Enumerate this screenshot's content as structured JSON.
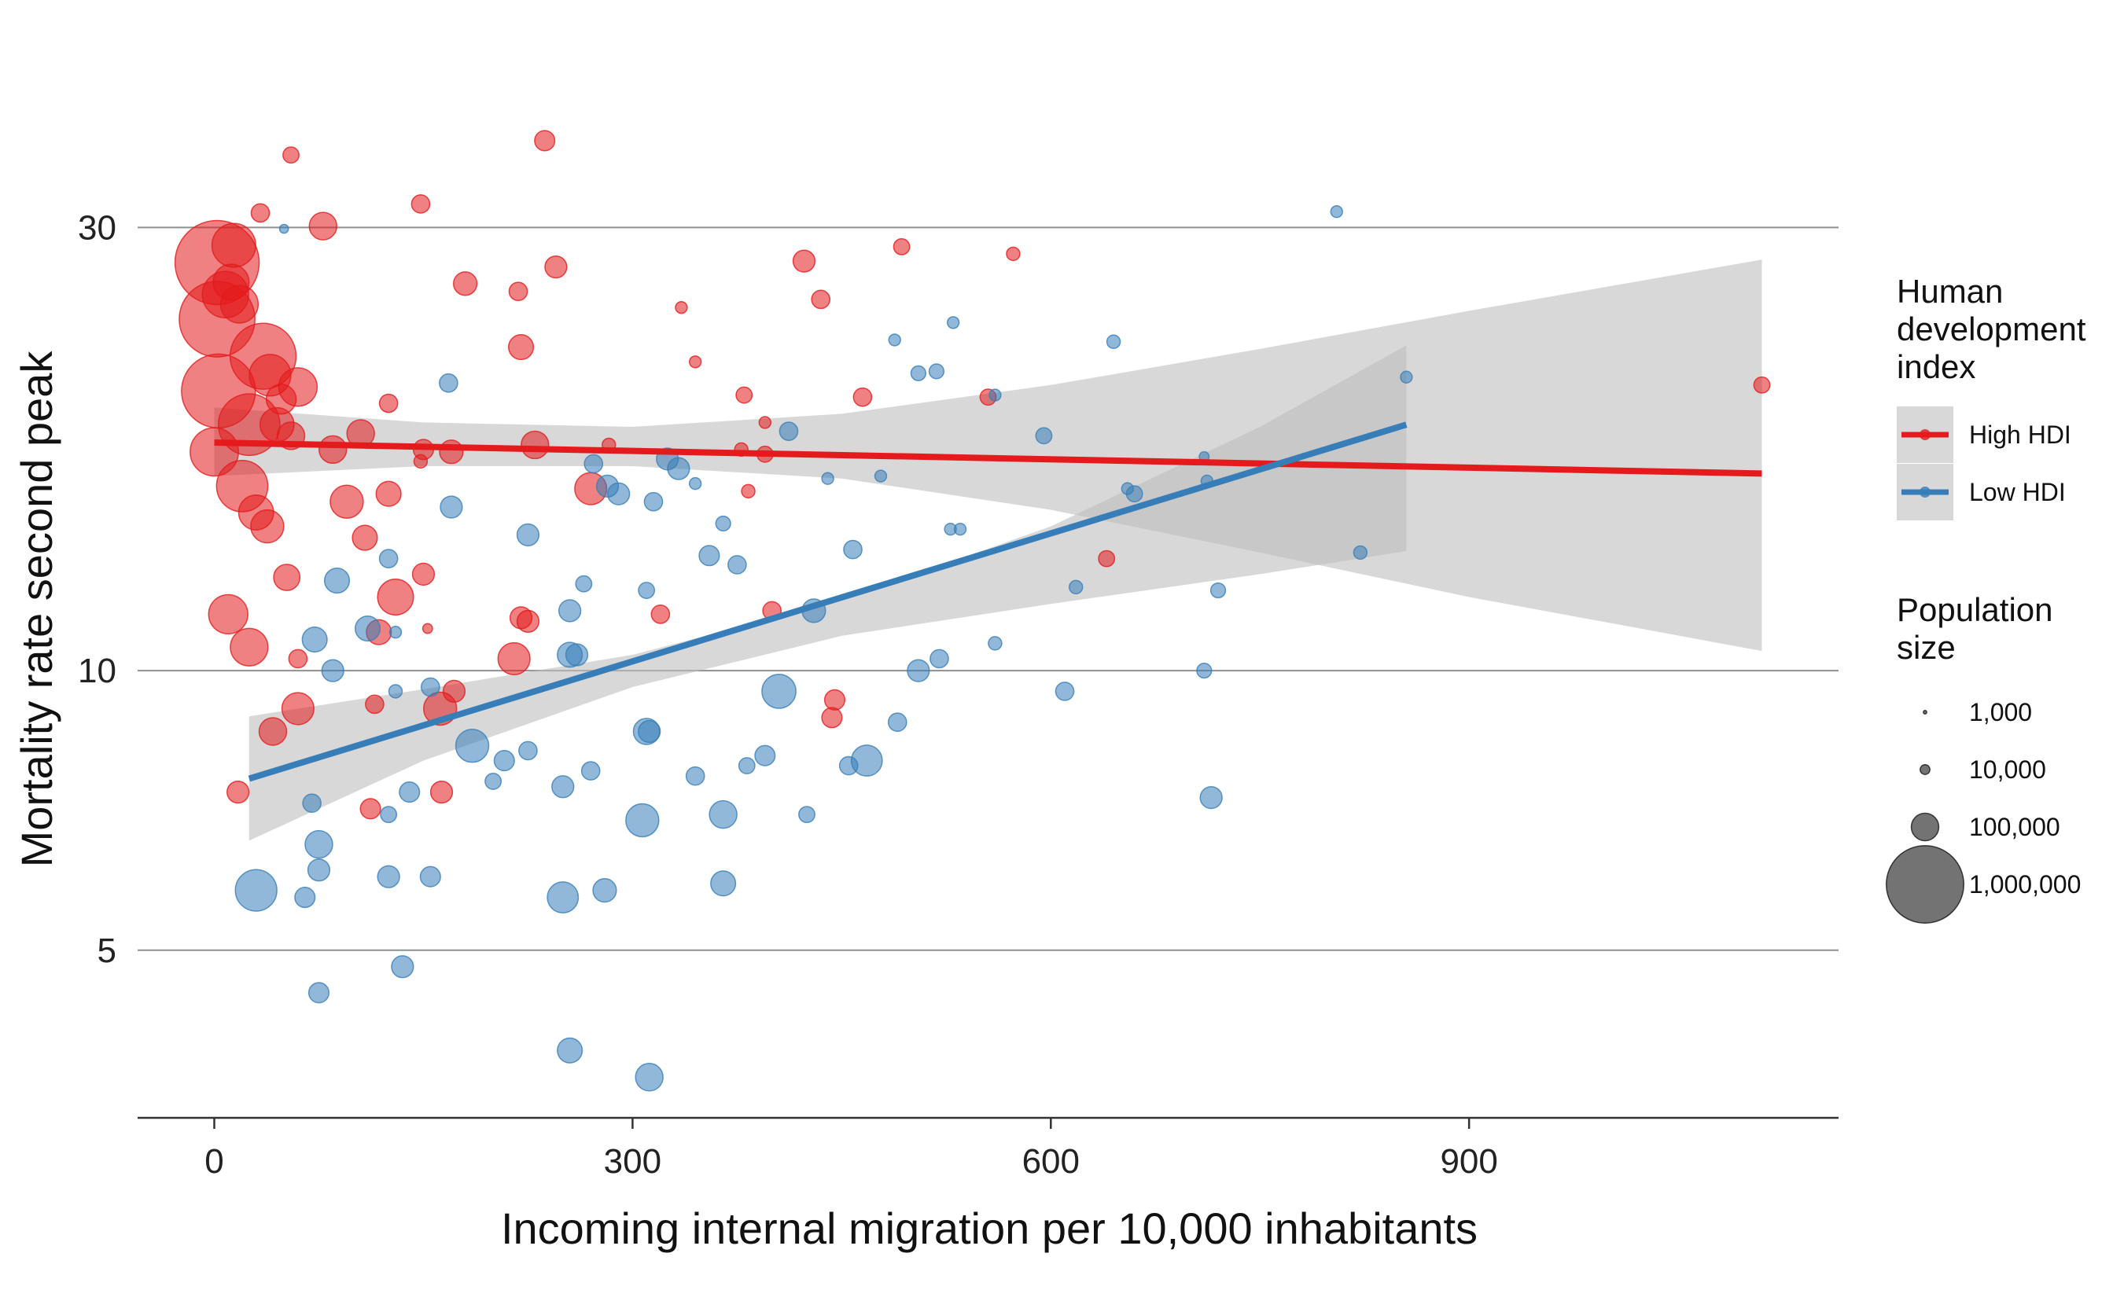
{
  "chart_data": {
    "type": "scatter",
    "xlabel": "Incoming internal migration per 10,000 inhabitants",
    "ylabel": "Mortality rate second peak",
    "x_ticks": [
      "0",
      "300",
      "600",
      "900"
    ],
    "y_ticks": [
      "5",
      "10",
      "30"
    ],
    "xlim": [
      -55,
      1165
    ],
    "ylim": [
      3.3,
      46
    ],
    "y_scale": "log",
    "grid": "horizontal major lines only",
    "colors": {
      "High HDI": "#E41A1C",
      "Low HDI": "#377EB8",
      "ribbon": "#BEBEBE"
    },
    "legend": {
      "placement": "right",
      "hdi_title": "Human development index",
      "hdi_entries": [
        "High HDI",
        "Low HDI"
      ],
      "size_title": "Population size",
      "size_entries": [
        {
          "label": "1,000",
          "pop": 1000
        },
        {
          "label": "10,000",
          "pop": 10000
        },
        {
          "label": "100,000",
          "pop": 100000
        },
        {
          "label": "1,000,000",
          "pop": 1000000
        }
      ]
    },
    "fits": [
      {
        "name": "High HDI",
        "line": [
          [
            0,
            17.6
          ],
          [
            1110,
            16.3
          ]
        ],
        "ribbon_upper": [
          [
            0,
            19.2
          ],
          [
            150,
            18.5
          ],
          [
            300,
            18.3
          ],
          [
            450,
            18.9
          ],
          [
            600,
            20.3
          ],
          [
            750,
            22.2
          ],
          [
            900,
            24.4
          ],
          [
            1110,
            27.7
          ]
        ],
        "ribbon_lower": [
          [
            0,
            16.2
          ],
          [
            150,
            16.6
          ],
          [
            300,
            16.6
          ],
          [
            450,
            16.1
          ],
          [
            600,
            14.9
          ],
          [
            750,
            13.4
          ],
          [
            900,
            12.0
          ],
          [
            1110,
            10.5
          ]
        ]
      },
      {
        "name": "Low HDI",
        "line": [
          [
            25,
            7.65
          ],
          [
            855,
            18.4
          ]
        ],
        "ribbon_upper": [
          [
            25,
            8.93
          ],
          [
            150,
            9.55
          ],
          [
            300,
            10.4
          ],
          [
            450,
            11.9
          ],
          [
            600,
            14.3
          ],
          [
            750,
            18.3
          ],
          [
            855,
            22.4
          ]
        ],
        "ribbon_lower": [
          [
            25,
            6.56
          ],
          [
            150,
            8.0
          ],
          [
            300,
            9.6
          ],
          [
            450,
            10.9
          ],
          [
            600,
            11.8
          ],
          [
            750,
            12.7
          ],
          [
            855,
            13.45
          ]
        ]
      }
    ],
    "series": [
      {
        "name": "High HDI",
        "points": [
          [
            2,
            27.5,
            1200000
          ],
          [
            2,
            23.9,
            950000
          ],
          [
            3,
            20.0,
            900000
          ],
          [
            8,
            25.4,
            320000
          ],
          [
            14,
            28.7,
            280000
          ],
          [
            12,
            26.2,
            180000
          ],
          [
            18,
            24.8,
            200000
          ],
          [
            25,
            18.4,
            600000
          ],
          [
            35,
            21.8,
            700000
          ],
          [
            40,
            20.8,
            250000
          ],
          [
            48,
            19.6,
            120000
          ],
          [
            60,
            20.2,
            210000
          ],
          [
            0,
            17.2,
            350000
          ],
          [
            20,
            15.8,
            400000
          ],
          [
            45,
            18.4,
            160000
          ],
          [
            30,
            14.8,
            170000
          ],
          [
            38,
            14.3,
            150000
          ],
          [
            55,
            17.9,
            100000
          ],
          [
            85,
            17.3,
            100000
          ],
          [
            95,
            15.2,
            150000
          ],
          [
            105,
            18.0,
            100000
          ],
          [
            108,
            13.9,
            80000
          ],
          [
            125,
            15.5,
            80000
          ],
          [
            150,
            17.3,
            50000
          ],
          [
            170,
            17.2,
            70000
          ],
          [
            230,
            17.5,
            100000
          ],
          [
            270,
            15.7,
            140000
          ],
          [
            130,
            12.0,
            180000
          ],
          [
            10,
            11.5,
            220000
          ],
          [
            25,
            10.6,
            200000
          ],
          [
            52,
            12.6,
            90000
          ],
          [
            118,
            11.0,
            80000
          ],
          [
            150,
            12.7,
            60000
          ],
          [
            220,
            11.4,
            60000
          ],
          [
            225,
            11.3,
            60000
          ],
          [
            215,
            10.3,
            140000
          ],
          [
            60,
            10.3,
            40000
          ],
          [
            60,
            9.1,
            140000
          ],
          [
            42,
            8.6,
            100000
          ],
          [
            115,
            9.2,
            40000
          ],
          [
            162,
            9.1,
            150000
          ],
          [
            172,
            9.5,
            60000
          ],
          [
            17,
            7.4,
            60000
          ],
          [
            112,
            7.1,
            50000
          ],
          [
            163,
            7.4,
            60000
          ],
          [
            445,
            9.3,
            50000
          ],
          [
            443,
            8.9,
            50000
          ],
          [
            320,
            11.5,
            40000
          ],
          [
            400,
            11.6,
            40000
          ],
          [
            180,
            26.1,
            70000
          ],
          [
            218,
            25.6,
            40000
          ],
          [
            220,
            22.3,
            80000
          ],
          [
            245,
            27.2,
            60000
          ],
          [
            237,
            37.2,
            50000
          ],
          [
            148,
            31.8,
            40000
          ],
          [
            55,
            35.9,
            30000
          ],
          [
            33,
            31.1,
            40000
          ],
          [
            78,
            30.1,
            100000
          ],
          [
            125,
            19.4,
            40000
          ],
          [
            148,
            16.8,
            20000
          ],
          [
            283,
            17.5,
            20000
          ],
          [
            378,
            17.3,
            20000
          ],
          [
            395,
            18.5,
            15000
          ],
          [
            395,
            17.1,
            30000
          ],
          [
            380,
            19.8,
            30000
          ],
          [
            423,
            27.6,
            60000
          ],
          [
            435,
            25.1,
            40000
          ],
          [
            493,
            28.6,
            30000
          ],
          [
            573,
            28.1,
            20000
          ],
          [
            465,
            19.7,
            40000
          ],
          [
            555,
            19.7,
            30000
          ],
          [
            640,
            13.2,
            30000
          ],
          [
            1110,
            20.3,
            30000
          ],
          [
            335,
            24.6,
            15000
          ],
          [
            345,
            21.5,
            15000
          ],
          [
            383,
            15.6,
            20000
          ],
          [
            153,
            11.1,
            10000
          ]
        ]
      },
      {
        "name": "Low HDI",
        "points": [
          [
            50,
            29.9,
            8000
          ],
          [
            168,
            20.4,
            40000
          ],
          [
            345,
            15.9,
            15000
          ],
          [
            355,
            13.3,
            50000
          ],
          [
            375,
            13.0,
            40000
          ],
          [
            365,
            14.4,
            25000
          ],
          [
            412,
            18.1,
            40000
          ],
          [
            440,
            16.1,
            15000
          ],
          [
            478,
            16.2,
            15000
          ],
          [
            530,
            23.7,
            15000
          ],
          [
            505,
            20.9,
            25000
          ],
          [
            518,
            21.0,
            25000
          ],
          [
            595,
            17.9,
            30000
          ],
          [
            645,
            22.6,
            20000
          ],
          [
            660,
            15.5,
            30000
          ],
          [
            712,
            16.0,
            15000
          ],
          [
            805,
            31.2,
            15000
          ],
          [
            822,
            13.4,
            20000
          ],
          [
            855,
            20.7,
            15000
          ],
          [
            720,
            12.2,
            25000
          ],
          [
            618,
            12.3,
            20000
          ],
          [
            560,
            10.7,
            20000
          ],
          [
            535,
            14.2,
            15000
          ],
          [
            528,
            14.2,
            15000
          ],
          [
            458,
            13.5,
            40000
          ],
          [
            430,
            11.6,
            70000
          ],
          [
            560,
            19.8,
            15000
          ],
          [
            488,
            22.7,
            15000
          ],
          [
            225,
            14.0,
            60000
          ],
          [
            170,
            15.0,
            60000
          ],
          [
            125,
            13.2,
            40000
          ],
          [
            130,
            11.0,
            15000
          ],
          [
            88,
            12.5,
            80000
          ],
          [
            72,
            10.8,
            80000
          ],
          [
            85,
            10.0,
            60000
          ],
          [
            110,
            11.1,
            80000
          ],
          [
            130,
            9.5,
            20000
          ],
          [
            155,
            9.6,
            40000
          ],
          [
            260,
            10.4,
            60000
          ],
          [
            272,
            16.7,
            40000
          ],
          [
            255,
            11.6,
            60000
          ],
          [
            255,
            10.4,
            80000
          ],
          [
            265,
            12.4,
            30000
          ],
          [
            282,
            15.8,
            60000
          ],
          [
            290,
            15.5,
            60000
          ],
          [
            310,
            12.2,
            30000
          ],
          [
            315,
            15.2,
            40000
          ],
          [
            325,
            16.9,
            60000
          ],
          [
            333,
            16.5,
            60000
          ],
          [
            405,
            9.5,
            160000
          ],
          [
            395,
            8.1,
            50000
          ],
          [
            382,
            7.9,
            30000
          ],
          [
            345,
            7.7,
            40000
          ],
          [
            310,
            8.6,
            90000
          ],
          [
            312,
            8.6,
            60000
          ],
          [
            270,
            7.8,
            40000
          ],
          [
            225,
            8.2,
            40000
          ],
          [
            200,
            7.6,
            30000
          ],
          [
            208,
            8.0,
            50000
          ],
          [
            185,
            8.3,
            150000
          ],
          [
            140,
            7.4,
            50000
          ],
          [
            125,
            7.0,
            30000
          ],
          [
            70,
            7.2,
            40000
          ],
          [
            75,
            6.5,
            100000
          ],
          [
            75,
            6.1,
            60000
          ],
          [
            65,
            5.7,
            50000
          ],
          [
            125,
            6.0,
            60000
          ],
          [
            155,
            6.0,
            50000
          ],
          [
            250,
            7.5,
            60000
          ],
          [
            307,
            6.9,
            150000
          ],
          [
            365,
            7.0,
            100000
          ],
          [
            425,
            7.0,
            30000
          ],
          [
            455,
            7.9,
            40000
          ],
          [
            468,
            8.0,
            130000
          ],
          [
            490,
            8.8,
            40000
          ],
          [
            505,
            10.0,
            60000
          ],
          [
            520,
            10.3,
            40000
          ],
          [
            610,
            9.5,
            40000
          ],
          [
            710,
            10.0,
            25000
          ],
          [
            715,
            7.3,
            60000
          ],
          [
            30,
            5.8,
            250000
          ],
          [
            250,
            5.7,
            130000
          ],
          [
            280,
            5.8,
            70000
          ],
          [
            365,
            5.9,
            80000
          ],
          [
            135,
            4.8,
            60000
          ],
          [
            75,
            4.5,
            50000
          ],
          [
            255,
            3.9,
            80000
          ],
          [
            312,
            3.65,
            100000
          ],
          [
            655,
            15.7,
            15000
          ],
          [
            710,
            17.0,
            10000
          ]
        ]
      }
    ]
  }
}
